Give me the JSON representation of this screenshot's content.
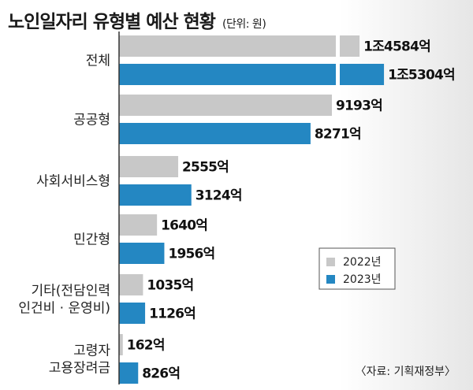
{
  "title": "노인일자리 유형별 예산 현황",
  "unit": "(단위: 원)",
  "source": "〈자료: 기획재정부〉",
  "colors": {
    "2022": "#c8c8c8",
    "2023": "#2487c2"
  },
  "chart_data": {
    "type": "bar",
    "orientation": "horizontal",
    "title": "노인일자리 유형별 예산 현황",
    "unit": "억 원",
    "categories": [
      [
        "전체"
      ],
      [
        "공공형"
      ],
      [
        "사회서비스형"
      ],
      [
        "민간형"
      ],
      [
        "기타(전담인력",
        "인건비 · 운영비)"
      ],
      [
        "고령자",
        "고용장려금"
      ]
    ],
    "series": [
      {
        "name": "2022년",
        "values": [
          14584,
          9193,
          2555,
          1640,
          1035,
          162
        ],
        "labels": [
          "1조4584억",
          "9193억",
          "2555억",
          "1640억",
          "1035억",
          "162억"
        ]
      },
      {
        "name": "2023년",
        "values": [
          15304,
          8271,
          3124,
          1956,
          1126,
          826
        ],
        "labels": [
          "1조5304억",
          "8271억",
          "3124억",
          "1956억",
          "1126억",
          "826억"
        ]
      }
    ],
    "axis_break": {
      "category": "전체"
    },
    "legend": "right"
  }
}
